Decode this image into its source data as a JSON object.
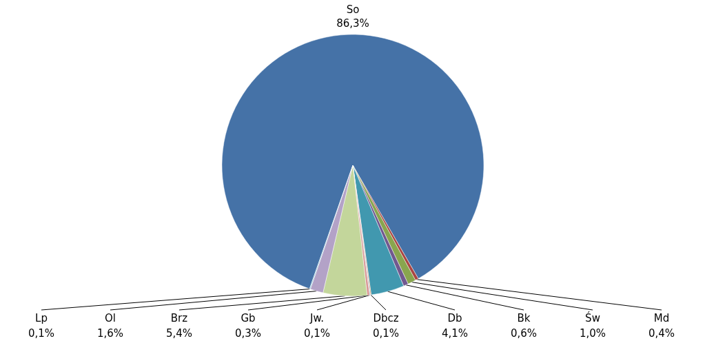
{
  "chart_data": {
    "type": "pie",
    "categories": [
      "So",
      "Md",
      "Św",
      "Bk",
      "Db",
      "Dbcz",
      "Jw.",
      "Gb",
      "Brz",
      "Ol",
      "Lp"
    ],
    "values": [
      86.3,
      0.4,
      1.0,
      0.6,
      4.1,
      0.1,
      0.1,
      0.3,
      5.4,
      1.6,
      0.1
    ],
    "value_labels": [
      "86,3%",
      "0,4%",
      "1,0%",
      "0,6%",
      "4,1%",
      "0,1%",
      "0,1%",
      "0,3%",
      "5,4%",
      "1,6%",
      "0,1%"
    ],
    "colors": [
      "#4572a7",
      "#aa4643",
      "#89a54e",
      "#71588f",
      "#4198af",
      "#db843d",
      "#93a9cf",
      "#d99694",
      "#c3d69b",
      "#b3a2c7",
      "#8fc4d9"
    ]
  }
}
